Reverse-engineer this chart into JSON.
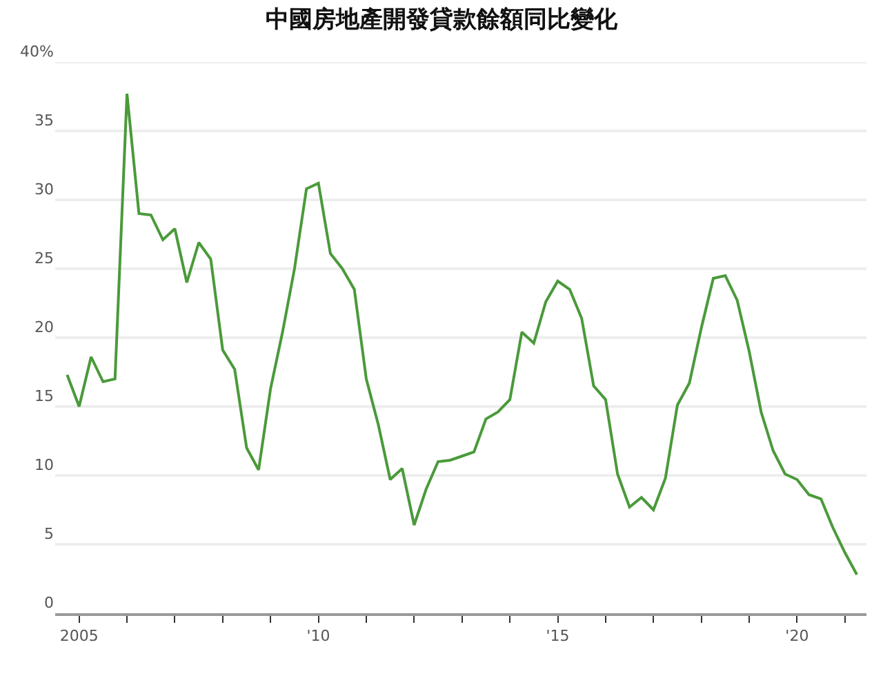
{
  "chart_data": {
    "type": "line",
    "title": "中國房地產開發貸款餘額同比變化",
    "x": [
      2004.75,
      2005,
      2005.25,
      2005.5,
      2005.75,
      2006,
      2006.25,
      2006.5,
      2006.75,
      2007,
      2007.25,
      2007.5,
      2007.75,
      2008,
      2008.25,
      2008.5,
      2008.75,
      2009,
      2009.25,
      2009.5,
      2009.75,
      2010,
      2010.25,
      2010.5,
      2010.75,
      2011,
      2011.25,
      2011.5,
      2011.75,
      2012,
      2012.25,
      2012.5,
      2012.75,
      2013,
      2013.25,
      2013.5,
      2013.75,
      2014,
      2014.25,
      2014.5,
      2014.75,
      2015,
      2015.25,
      2015.5,
      2015.75,
      2016,
      2016.25,
      2016.5,
      2016.75,
      2017,
      2017.25,
      2017.5,
      2017.75,
      2018,
      2018.25,
      2018.5,
      2018.75,
      2019,
      2019.25,
      2019.5,
      2019.75,
      2020,
      2020.25,
      2020.5,
      2020.75,
      2021,
      2021.25
    ],
    "series": [
      {
        "color": "#4a9a3a",
        "values": [
          17.3,
          15.0,
          18.6,
          16.8,
          17.0,
          37.7,
          29.0,
          28.9,
          27.1,
          27.9,
          24.0,
          26.9,
          25.7,
          19.1,
          17.7,
          12.0,
          10.4,
          16.3,
          20.4,
          25.0,
          30.8,
          31.2,
          26.1,
          25.0,
          23.5,
          17.0,
          13.7,
          9.7,
          10.5,
          6.4,
          9.0,
          11.0,
          11.1,
          11.4,
          11.7,
          14.1,
          14.6,
          15.5,
          20.4,
          19.6,
          22.6,
          24.1,
          23.5,
          21.4,
          16.5,
          15.5,
          10.1,
          7.7,
          8.4,
          7.5,
          9.8,
          15.1,
          16.7,
          20.7,
          24.3,
          24.5,
          22.7,
          19.0,
          14.6,
          11.8,
          10.1,
          9.7,
          8.6,
          8.3,
          6.2,
          4.4,
          2.8
        ]
      }
    ],
    "xlim": [
      2004.5,
      2021.45
    ],
    "xticks": [
      {
        "value": 2005,
        "label": "2005"
      },
      {
        "value": 2006,
        "label": null
      },
      {
        "value": 2007,
        "label": null
      },
      {
        "value": 2008,
        "label": null
      },
      {
        "value": 2009,
        "label": null
      },
      {
        "value": 2010,
        "label": "'10"
      },
      {
        "value": 2011,
        "label": null
      },
      {
        "value": 2012,
        "label": null
      },
      {
        "value": 2013,
        "label": null
      },
      {
        "value": 2014,
        "label": null
      },
      {
        "value": 2015,
        "label": "'15"
      },
      {
        "value": 2016,
        "label": null
      },
      {
        "value": 2017,
        "label": null
      },
      {
        "value": 2018,
        "label": null
      },
      {
        "value": 2019,
        "label": null
      },
      {
        "value": 2020,
        "label": "'20"
      },
      {
        "value": 2021,
        "label": null
      }
    ],
    "ylim": [
      0,
      40
    ],
    "yticks": [
      0,
      5,
      10,
      15,
      20,
      25,
      30,
      35,
      {
        "value": 40,
        "label": "40%"
      }
    ],
    "grid": "y",
    "marker": "none",
    "line_style": "solid"
  }
}
